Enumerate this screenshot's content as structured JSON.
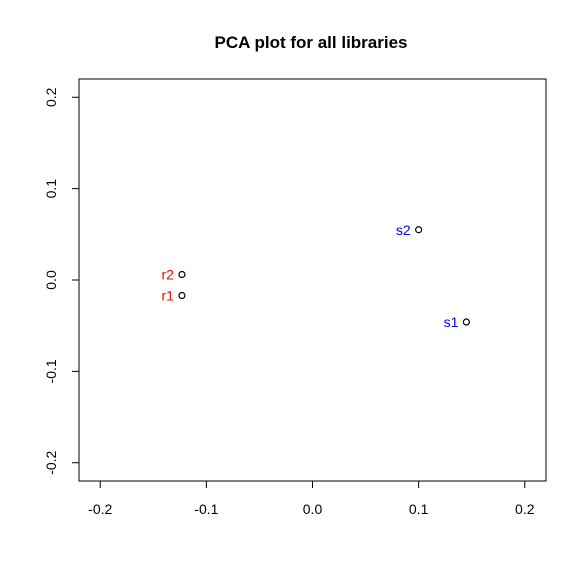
{
  "chart_data": {
    "type": "scatter",
    "title": "PCA plot for all libraries",
    "xlabel": "",
    "ylabel": "",
    "xlim": [
      -0.22,
      0.22
    ],
    "ylim": [
      -0.22,
      0.22
    ],
    "x_ticks": [
      -0.2,
      -0.1,
      0.0,
      0.1,
      0.2
    ],
    "y_ticks": [
      -0.2,
      -0.1,
      0.0,
      0.1,
      0.2
    ],
    "x_tick_labels": [
      "-0.2",
      "-0.1",
      "0.0",
      "0.1",
      "0.2"
    ],
    "y_tick_labels": [
      "-0.2",
      "-0.1",
      "0.0",
      "0.1",
      "0.2"
    ],
    "grid": false,
    "points": [
      {
        "label": "r2",
        "x": -0.123,
        "y": 0.006,
        "color": "#ff0000"
      },
      {
        "label": "r1",
        "x": -0.123,
        "y": -0.017,
        "color": "#ff0000"
      },
      {
        "label": "s2",
        "x": 0.1,
        "y": 0.055,
        "color": "#0000ff"
      },
      {
        "label": "s1",
        "x": 0.145,
        "y": -0.046,
        "color": "#0000ff"
      }
    ],
    "marker_color": "#000000"
  }
}
